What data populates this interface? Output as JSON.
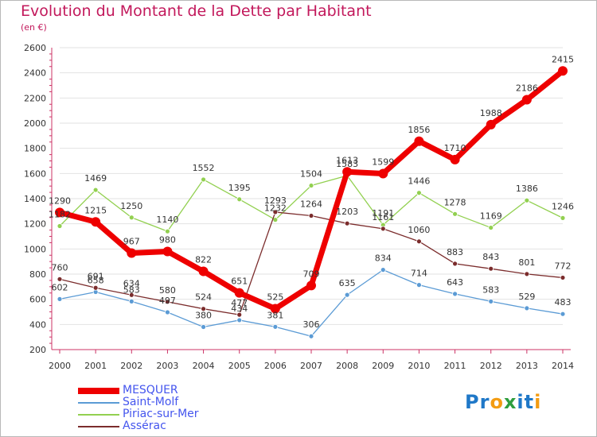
{
  "chart_data": {
    "type": "line",
    "title": "Evolution du Montant de la Dette par Habitant",
    "unit_label": "(en €)",
    "xlabel": "",
    "ylabel": "",
    "ylim": [
      200,
      2600
    ],
    "yticks": [
      200,
      400,
      600,
      800,
      1000,
      1200,
      1400,
      1600,
      1800,
      2000,
      2200,
      2400,
      2600
    ],
    "grid": "horizontal",
    "legend_position": "bottom-left",
    "x": [
      "2000",
      "2001",
      "2002",
      "2003",
      "2004",
      "2005",
      "2006",
      "2007",
      "2008",
      "2009",
      "2010",
      "2011",
      "2012",
      "2013",
      "2014"
    ],
    "series": [
      {
        "name": "MESQUER",
        "color": "#ee0000",
        "width": 7,
        "radius": 6,
        "values": [
          1290,
          1215,
          967,
          980,
          822,
          651,
          525,
          709,
          1613,
          1599,
          1856,
          1710,
          1988,
          2186,
          2415
        ]
      },
      {
        "name": "Saint-Molf",
        "color": "#5b9bd5",
        "width": 1.3,
        "radius": 3,
        "values": [
          602,
          658,
          583,
          497,
          380,
          434,
          381,
          306,
          635,
          834,
          714,
          643,
          583,
          529,
          483
        ]
      },
      {
        "name": "Piriac-sur-Mer",
        "color": "#92d050",
        "width": 1.3,
        "radius": 3,
        "values": [
          1182,
          1469,
          1250,
          1140,
          1552,
          1395,
          1232,
          1504,
          1583,
          1191,
          1446,
          1278,
          1169,
          1386,
          1246
        ]
      },
      {
        "name": "Assérac",
        "color": "#7b2c2c",
        "width": 1.3,
        "radius": 3,
        "values": [
          760,
          691,
          634,
          580,
          524,
          477,
          1293,
          1264,
          1203,
          1161,
          1060,
          883,
          843,
          801,
          772
        ]
      }
    ]
  },
  "logo": {
    "text": "Proxiti",
    "letters": [
      "P",
      "r",
      "o",
      "x",
      "i",
      "t",
      "i"
    ],
    "colors": [
      "#1f78c8",
      "#1f78c8",
      "#f39c12",
      "#2e9e3e",
      "#1f78c8",
      "#1f78c8",
      "#f39c12"
    ]
  }
}
